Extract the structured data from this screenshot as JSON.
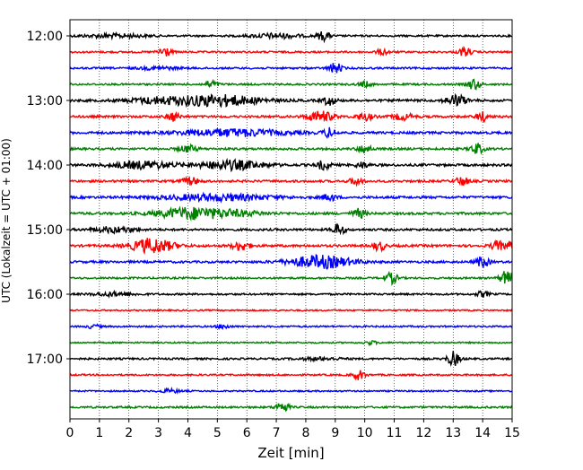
{
  "chart_data": {
    "type": "line",
    "title": "",
    "xlabel": "Zeit  [min]",
    "ylabel": "UTC (Lokalzeit = UTC + 01:00)",
    "xlim": [
      0,
      15
    ],
    "x_ticks": [
      0,
      1,
      2,
      3,
      4,
      5,
      6,
      7,
      8,
      9,
      10,
      11,
      12,
      13,
      14,
      15
    ],
    "grid": "vertical dotted at each minute",
    "y_ticks": [
      {
        "label": "12:00",
        "row": 0
      },
      {
        "label": "13:00",
        "row": 4
      },
      {
        "label": "14:00",
        "row": 8
      },
      {
        "label": "15:00",
        "row": 12
      },
      {
        "label": "16:00",
        "row": 16
      },
      {
        "label": "17:00",
        "row": 20
      }
    ],
    "row_interval_minutes": 15,
    "row_colors": [
      "#000000",
      "#ff0000",
      "#0000ff",
      "#008000"
    ],
    "rows": [
      {
        "start": "12:00",
        "base": 1.0,
        "events": [
          [
            8.6,
            5,
            0.3
          ],
          [
            1.5,
            2,
            1.5
          ],
          [
            7.0,
            2.5,
            1.2
          ]
        ]
      },
      {
        "start": "12:15",
        "base": 1.0,
        "events": [
          [
            3.2,
            6,
            0.3
          ],
          [
            10.6,
            3,
            0.3
          ],
          [
            13.4,
            5,
            0.3
          ]
        ]
      },
      {
        "start": "12:30",
        "base": 1.0,
        "events": [
          [
            9.0,
            6,
            0.3
          ],
          [
            3.0,
            1.5,
            1.0
          ]
        ]
      },
      {
        "start": "12:45",
        "base": 1.0,
        "events": [
          [
            4.8,
            4,
            0.3
          ],
          [
            10.0,
            3,
            0.3
          ],
          [
            13.7,
            6,
            0.3
          ]
        ]
      },
      {
        "start": "13:00",
        "base": 1.3,
        "events": [
          [
            3.0,
            3,
            1.5
          ],
          [
            5.0,
            6,
            2.0
          ],
          [
            8.8,
            5,
            0.3
          ],
          [
            13.1,
            6,
            0.5
          ]
        ]
      },
      {
        "start": "13:15",
        "base": 1.2,
        "events": [
          [
            3.5,
            5,
            0.3
          ],
          [
            8.5,
            6,
            0.6
          ],
          [
            10.0,
            4,
            0.4
          ],
          [
            11.3,
            3.5,
            0.5
          ],
          [
            14.0,
            5,
            0.3
          ]
        ]
      },
      {
        "start": "13:30",
        "base": 1.3,
        "events": [
          [
            5.5,
            4,
            2.5
          ],
          [
            8.8,
            5,
            0.3
          ]
        ]
      },
      {
        "start": "13:45",
        "base": 1.2,
        "events": [
          [
            4.0,
            4,
            0.4
          ],
          [
            10.0,
            5,
            0.3
          ],
          [
            13.8,
            6,
            0.3
          ]
        ]
      },
      {
        "start": "14:00",
        "base": 1.3,
        "events": [
          [
            2.5,
            4,
            1.5
          ],
          [
            5.5,
            5,
            1.5
          ],
          [
            8.6,
            5,
            0.3
          ],
          [
            9.9,
            3,
            0.3
          ]
        ]
      },
      {
        "start": "14:15",
        "base": 1.2,
        "events": [
          [
            4.1,
            4,
            0.4
          ],
          [
            9.7,
            4,
            0.3
          ],
          [
            13.3,
            5,
            0.3
          ]
        ]
      },
      {
        "start": "14:30",
        "base": 1.3,
        "events": [
          [
            5.0,
            3.5,
            2.5
          ],
          [
            8.8,
            4,
            0.3
          ]
        ]
      },
      {
        "start": "14:45",
        "base": 1.3,
        "events": [
          [
            4.0,
            6,
            1.5
          ],
          [
            5.5,
            3,
            1.5
          ],
          [
            9.8,
            5,
            0.3
          ]
        ]
      },
      {
        "start": "15:00",
        "base": 1.2,
        "events": [
          [
            1.5,
            3,
            1.0
          ],
          [
            9.1,
            6,
            0.3
          ]
        ]
      },
      {
        "start": "15:15",
        "base": 1.3,
        "events": [
          [
            2.8,
            8,
            1.0
          ],
          [
            5.8,
            5,
            0.4
          ],
          [
            10.5,
            5,
            0.3
          ],
          [
            14.5,
            5,
            0.3
          ],
          [
            14.9,
            4,
            0.2
          ]
        ]
      },
      {
        "start": "15:30",
        "base": 1.2,
        "events": [
          [
            8.5,
            7,
            1.5
          ],
          [
            14.0,
            6,
            0.3
          ]
        ]
      },
      {
        "start": "15:45",
        "base": 1.0,
        "events": [
          [
            10.9,
            6,
            0.3
          ],
          [
            14.8,
            8,
            0.3
          ]
        ]
      },
      {
        "start": "16:00",
        "base": 1.0,
        "events": [
          [
            1.5,
            2,
            1.0
          ],
          [
            14.0,
            3,
            0.3
          ]
        ]
      },
      {
        "start": "16:15",
        "base": 0.8,
        "events": []
      },
      {
        "start": "16:30",
        "base": 0.9,
        "events": [
          [
            0.8,
            2,
            0.3
          ],
          [
            5.2,
            2.5,
            0.3
          ]
        ]
      },
      {
        "start": "16:45",
        "base": 0.8,
        "events": [
          [
            10.2,
            2,
            0.3
          ]
        ]
      },
      {
        "start": "17:00",
        "base": 1.0,
        "events": [
          [
            13.0,
            8,
            0.3
          ],
          [
            8.5,
            1.5,
            1.0
          ]
        ]
      },
      {
        "start": "17:15",
        "base": 0.9,
        "events": [
          [
            9.8,
            5,
            0.3
          ]
        ]
      },
      {
        "start": "17:30",
        "base": 0.8,
        "events": [
          [
            3.4,
            2,
            0.5
          ]
        ]
      },
      {
        "start": "17:45",
        "base": 1.0,
        "events": [
          [
            7.2,
            6,
            0.3
          ]
        ]
      }
    ]
  }
}
